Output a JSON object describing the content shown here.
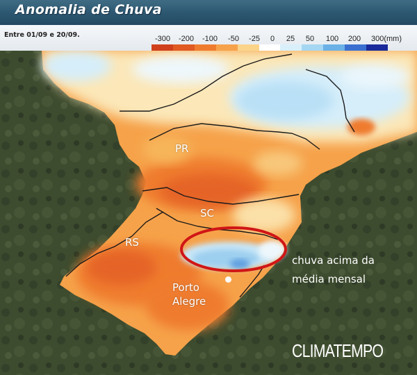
{
  "title": "Anomalia de Chuva",
  "period": "Entre 01/09 e 20/09.",
  "legend": {
    "unit": "(mm)",
    "labels": [
      "-300",
      "-200",
      "-100",
      "-50",
      "-25",
      "0",
      "25",
      "50",
      "100",
      "200",
      "300(mm)"
    ],
    "colors": [
      "#d0401c",
      "#e05a22",
      "#ef7c2e",
      "#f6a24a",
      "#fbd48a",
      "#ffffff",
      "#d9f0fb",
      "#a5d6f2",
      "#6bb1e6",
      "#3a6fd0",
      "#1a2a9a"
    ]
  },
  "labels": {
    "states": [
      "PR",
      "SC",
      "RS"
    ],
    "city": "Porto Alegre",
    "city_lines": [
      "Porto",
      "Alegre"
    ]
  },
  "annotation": {
    "lines": [
      "chuva acima da",
      "média mensal"
    ]
  },
  "brand": "CLIMATEMPO",
  "colors": {
    "banner": "#2f5a73",
    "highlight_ellipse": "#d01616",
    "ocean": "#0d1a4a",
    "land_dark": "#3a4a2c"
  }
}
